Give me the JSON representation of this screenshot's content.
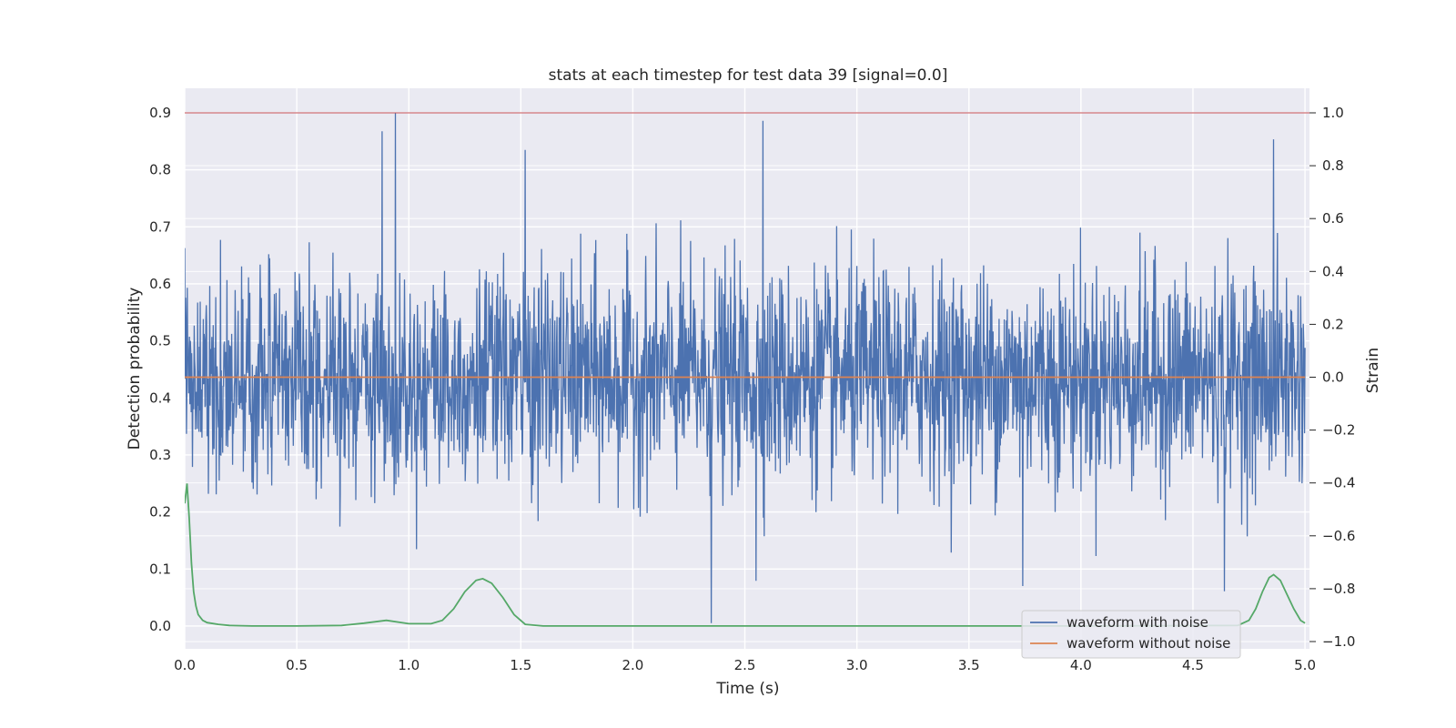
{
  "chart_data": {
    "type": "line",
    "title": "stats at each timestep for test data 39 [signal=0.0]",
    "xlabel": "Time (s)",
    "ylabel": "Detection probability",
    "ylabel_right": "Strain",
    "xlim": [
      0.0,
      5.02
    ],
    "ylim": [
      -0.04,
      0.943
    ],
    "ylim_right": [
      -1.0,
      1.0
    ],
    "x_ticks": [
      "0.0",
      "0.5",
      "1.0",
      "1.5",
      "2.0",
      "2.5",
      "3.0",
      "3.5",
      "4.0",
      "4.5",
      "5.0"
    ],
    "y_ticks": [
      "0.0",
      "0.1",
      "0.2",
      "0.3",
      "0.4",
      "0.5",
      "0.6",
      "0.7",
      "0.8",
      "0.9"
    ],
    "y_ticks_right": [
      "1.0",
      "0.8",
      "0.6",
      "0.4",
      "0.2",
      "0.0",
      "−0.2",
      "−0.4",
      "−0.6",
      "−0.8",
      "−1.0"
    ],
    "grid": true,
    "legend_position": "lower-right",
    "series": [
      {
        "name": "waveform with noise",
        "axis": "right",
        "color": "#4c72b0",
        "summary": "dense noise centred on 0, typical range about -0.6 to 0.6, extreme peaks near 1.0 (t=0.94) and -0.93 (t=2.35)",
        "peaks": [
          [
            0.94,
            1.0
          ],
          [
            2.58,
            0.97
          ],
          [
            0.88,
            0.93
          ],
          [
            4.86,
            0.9
          ],
          [
            1.52,
            0.86
          ],
          [
            2.35,
            -0.93
          ],
          [
            4.64,
            -0.81
          ],
          [
            2.55,
            -0.77
          ],
          [
            3.74,
            -0.79
          ]
        ]
      },
      {
        "name": "waveform without noise",
        "axis": "right",
        "color": "#dd8452",
        "x": [
          0.0,
          5.0
        ],
        "y": [
          0.0,
          0.0
        ]
      },
      {
        "name": "",
        "axis": "left",
        "color": "#55a868",
        "x": [
          0.0,
          0.01,
          0.02,
          0.03,
          0.04,
          0.05,
          0.06,
          0.08,
          0.1,
          0.15,
          0.2,
          0.3,
          0.5,
          0.7,
          0.8,
          0.9,
          1.0,
          1.1,
          1.15,
          1.2,
          1.25,
          1.3,
          1.33,
          1.37,
          1.42,
          1.47,
          1.52,
          1.6,
          2.0,
          3.0,
          4.0,
          4.7,
          4.75,
          4.78,
          4.81,
          4.84,
          4.86,
          4.89,
          4.92,
          4.95,
          4.98,
          5.0
        ],
        "y": [
          0.215,
          0.25,
          0.19,
          0.11,
          0.06,
          0.035,
          0.02,
          0.01,
          0.006,
          0.003,
          0.001,
          0.0,
          0.0,
          0.001,
          0.005,
          0.01,
          0.004,
          0.004,
          0.01,
          0.03,
          0.06,
          0.08,
          0.083,
          0.075,
          0.05,
          0.02,
          0.003,
          0.0,
          0.0,
          0.0,
          0.0,
          0.001,
          0.01,
          0.03,
          0.06,
          0.085,
          0.09,
          0.08,
          0.055,
          0.03,
          0.01,
          0.005
        ]
      },
      {
        "name": "",
        "axis": "left",
        "color": "#c44e52",
        "x": [
          0.0,
          5.02
        ],
        "y": [
          0.9,
          0.9
        ]
      }
    ]
  },
  "legend": {
    "items": [
      {
        "label": "waveform with noise",
        "color": "#4c72b0"
      },
      {
        "label": "waveform without noise",
        "color": "#dd8452"
      }
    ]
  }
}
